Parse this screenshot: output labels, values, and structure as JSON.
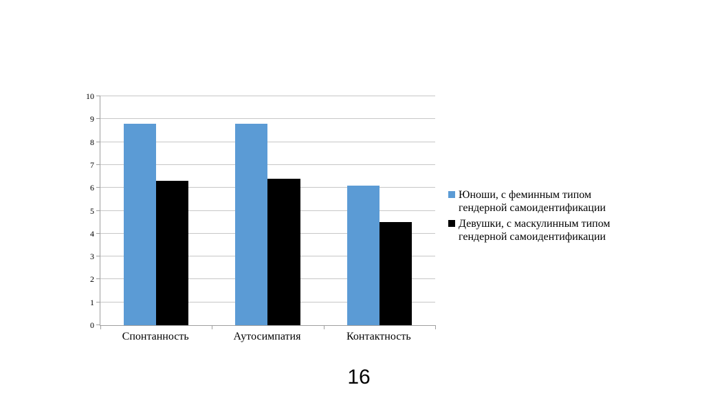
{
  "page": {
    "number": "16"
  },
  "chart_data": {
    "type": "bar",
    "title": "",
    "categories": [
      "Спонтанность",
      "Аутосимпатия",
      "Контактность"
    ],
    "series": [
      {
        "name": "Юноши, с феминным типом гендерной самоидентификации",
        "color": "#5b9bd5",
        "values": [
          8.8,
          8.8,
          6.1
        ]
      },
      {
        "name": "Девушки, с маскулинным типом гендерной самоидентификации",
        "color": "#000000",
        "values": [
          6.3,
          6.4,
          4.5
        ]
      }
    ],
    "xlabel": "",
    "ylabel": "",
    "ylim": [
      0,
      10
    ],
    "yticks": [
      0,
      1,
      2,
      3,
      4,
      5,
      6,
      7,
      8,
      9,
      10
    ],
    "grid": true,
    "legend_position": "right",
    "axis_color": "#9e9e9e",
    "grid_color": "#c6c6c6"
  }
}
